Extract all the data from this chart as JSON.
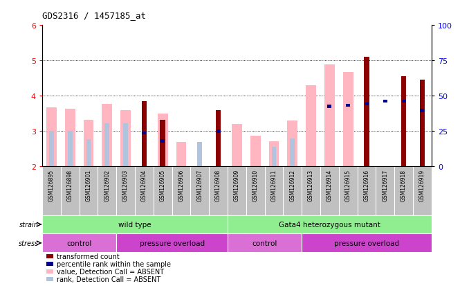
{
  "title": "GDS2316 / 1457185_at",
  "samples": [
    "GSM126895",
    "GSM126898",
    "GSM126901",
    "GSM126902",
    "GSM126903",
    "GSM126904",
    "GSM126905",
    "GSM126906",
    "GSM126907",
    "GSM126908",
    "GSM126909",
    "GSM126910",
    "GSM126911",
    "GSM126912",
    "GSM126913",
    "GSM126914",
    "GSM126915",
    "GSM126916",
    "GSM126917",
    "GSM126918",
    "GSM126919"
  ],
  "transformed_count": [
    null,
    null,
    null,
    null,
    null,
    3.85,
    3.33,
    null,
    null,
    3.6,
    null,
    null,
    null,
    null,
    null,
    null,
    null,
    5.1,
    null,
    4.55,
    4.45
  ],
  "percentile_rank": [
    null,
    null,
    null,
    null,
    null,
    2.95,
    2.72,
    null,
    null,
    3.0,
    null,
    null,
    null,
    null,
    null,
    3.7,
    3.73,
    3.77,
    3.85,
    3.85,
    3.58
  ],
  "value_absent": [
    3.68,
    3.63,
    3.32,
    3.78,
    3.6,
    null,
    3.5,
    2.7,
    null,
    null,
    3.2,
    2.88,
    2.72,
    3.3,
    4.3,
    4.88,
    4.67,
    null,
    null,
    null,
    null
  ],
  "rank_absent": [
    3.0,
    3.0,
    2.78,
    3.22,
    3.22,
    null,
    null,
    null,
    2.7,
    null,
    null,
    null,
    2.55,
    2.8,
    null,
    null,
    null,
    null,
    null,
    null,
    null
  ],
  "ylim_left": [
    2,
    6
  ],
  "ylim_right": [
    0,
    100
  ],
  "yticks_left": [
    2,
    3,
    4,
    5,
    6
  ],
  "yticks_right": [
    0,
    25,
    50,
    75,
    100
  ],
  "colors": {
    "transformed_count": "#8B0000",
    "percentile_rank": "#00008B",
    "value_absent": "#FFB6C1",
    "rank_absent": "#B0C4DE",
    "tick_bg": "#C0C0C0",
    "strain_bg": "#90EE90",
    "stress_control_bg": "#DA70D6",
    "stress_pressure_bg": "#CC44CC"
  },
  "strain_groups": [
    {
      "label": "wild type",
      "start": 0,
      "end": 9
    },
    {
      "label": "Gata4 heterozygous mutant",
      "start": 10,
      "end": 20
    }
  ],
  "stress_groups": [
    {
      "label": "control",
      "start": 0,
      "end": 3
    },
    {
      "label": "pressure overload",
      "start": 4,
      "end": 9
    },
    {
      "label": "control",
      "start": 10,
      "end": 13
    },
    {
      "label": "pressure overload",
      "start": 14,
      "end": 20
    }
  ],
  "legend_items": [
    {
      "label": "transformed count",
      "color": "#8B0000"
    },
    {
      "label": "percentile rank within the sample",
      "color": "#00008B"
    },
    {
      "label": "value, Detection Call = ABSENT",
      "color": "#FFB6C1"
    },
    {
      "label": "rank, Detection Call = ABSENT",
      "color": "#B0C4DE"
    }
  ]
}
